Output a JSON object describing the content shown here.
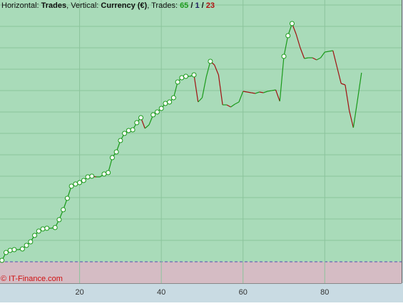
{
  "chart_data": {
    "type": "line",
    "title": [
      {
        "text": "Horizontal: "
      },
      {
        "text": "Trades",
        "bold": true
      },
      {
        "text": ", Vertical: "
      },
      {
        "text": "Currency (€)",
        "bold": true
      },
      {
        "text": ", Trades: "
      },
      {
        "text": "65",
        "bold": true,
        "color": "#1a9a1a"
      },
      {
        "text": " / ",
        "bold": true
      },
      {
        "text": "1",
        "bold": true,
        "color": "#202060"
      },
      {
        "text": " / ",
        "bold": true
      },
      {
        "text": "23",
        "bold": true,
        "color": "#b01010"
      }
    ],
    "watermark": "© IT-Finance.com",
    "x": [
      1,
      2,
      3,
      4,
      5,
      6,
      7,
      8,
      9,
      10,
      11,
      12,
      13,
      14,
      15,
      16,
      17,
      18,
      19,
      20,
      21,
      22,
      23,
      24,
      25,
      26,
      27,
      28,
      29,
      30,
      31,
      32,
      33,
      34,
      35,
      36,
      37,
      38,
      39,
      40,
      41,
      42,
      43,
      44,
      45,
      46,
      47,
      48,
      49,
      50,
      51,
      52,
      53,
      54,
      55,
      56,
      57,
      58,
      59,
      60,
      61,
      62,
      63,
      64,
      65,
      66,
      67,
      68,
      69,
      70,
      71,
      72,
      73,
      74,
      75,
      76,
      77,
      78,
      79,
      80,
      81,
      82,
      83,
      84,
      85,
      86,
      87,
      88,
      89
    ],
    "series": [
      {
        "up_color": "#1a9a1a",
        "down_color": "#a01010",
        "values": [
          0.2,
          1.3,
          1.6,
          1.7,
          1.7,
          1.8,
          2.3,
          2.8,
          3.7,
          4.3,
          4.6,
          4.7,
          4.7,
          4.8,
          5.9,
          7.3,
          8.9,
          10.6,
          10.9,
          11.1,
          11.4,
          11.9,
          12.0,
          11.9,
          11.9,
          12.3,
          12.5,
          14.6,
          15.4,
          17.0,
          18.0,
          18.4,
          18.5,
          19.5,
          20.2,
          18.7,
          19.2,
          20.6,
          21.0,
          21.5,
          22.2,
          22.4,
          23.0,
          25.2,
          25.8,
          26.0,
          26.0,
          26.2,
          22.4,
          23.0,
          25.9,
          28.1,
          27.6,
          26.2,
          22.0,
          22.0,
          21.7,
          22.1,
          22.4,
          23.9,
          23.8,
          23.7,
          23.6,
          23.8,
          23.7,
          23.9,
          24.0,
          24.1,
          22.5,
          28.8,
          31.7,
          33.4,
          31.9,
          30.0,
          28.5,
          28.6,
          28.6,
          28.3,
          28.6,
          29.4,
          29.5,
          29.6,
          27.3,
          25.0,
          24.8,
          21.2,
          18.8,
          22.6,
          26.5
        ]
      }
    ],
    "xlim": [
      0.52,
      98.8
    ],
    "xticks": [
      20,
      40,
      60,
      80
    ],
    "ylim": [
      -3,
      36.7
    ],
    "yticks": [
      0,
      3,
      6,
      9,
      12,
      15,
      18,
      21,
      24,
      27,
      30,
      33,
      36
    ],
    "grid": true
  }
}
